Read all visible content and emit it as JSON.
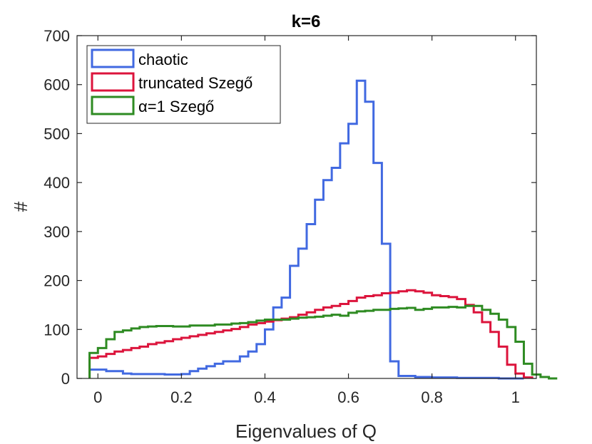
{
  "chart_data": {
    "type": "histogram",
    "title": "k=6",
    "xlabel": "Eigenvalues of Q",
    "ylabel": "#",
    "xlim": [
      -0.05,
      1.05
    ],
    "ylim": [
      0,
      700
    ],
    "xticks": [
      0,
      0.2,
      0.4,
      0.6,
      0.8,
      1
    ],
    "xtick_labels": [
      "0",
      "0.2",
      "0.4",
      "0.6",
      "0.8",
      "1"
    ],
    "yticks": [
      0,
      100,
      200,
      300,
      400,
      500,
      600,
      700
    ],
    "ytick_labels": [
      "0",
      "100",
      "200",
      "300",
      "400",
      "500",
      "600",
      "700"
    ],
    "legend_position": "top-left",
    "bin_start": -0.02,
    "bin_width": 0.02,
    "series": [
      {
        "name": "chaotic",
        "color": "#4169e1",
        "values": [
          18,
          18,
          15,
          15,
          10,
          9,
          9,
          9,
          9,
          8,
          8,
          9,
          15,
          20,
          25,
          30,
          35,
          35,
          45,
          55,
          70,
          100,
          145,
          165,
          230,
          265,
          315,
          365,
          405,
          430,
          480,
          520,
          608,
          565,
          440,
          275,
          35,
          5,
          5,
          3,
          3,
          2,
          2,
          2,
          1,
          1,
          1,
          1,
          1,
          0,
          0,
          0
        ]
      },
      {
        "name": "truncated Szegő",
        "color": "#dc143c",
        "values": [
          42,
          45,
          50,
          55,
          58,
          62,
          65,
          70,
          73,
          76,
          80,
          83,
          86,
          89,
          92,
          95,
          98,
          101,
          105,
          110,
          113,
          116,
          119,
          122,
          125,
          130,
          135,
          140,
          145,
          148,
          152,
          158,
          165,
          168,
          170,
          174,
          175,
          178,
          180,
          178,
          175,
          170,
          168,
          166,
          162,
          150,
          135,
          115,
          95,
          65,
          28,
          10,
          2
        ]
      },
      {
        "name": "α=1 Szegő",
        "color": "#2e8b22",
        "values": [
          52,
          62,
          80,
          95,
          98,
          102,
          105,
          106,
          107,
          107,
          106,
          106,
          108,
          108,
          108,
          110,
          110,
          112,
          113,
          115,
          118,
          120,
          120,
          120,
          122,
          124,
          125,
          126,
          128,
          130,
          128,
          134,
          137,
          138,
          140,
          140,
          142,
          143,
          144,
          140,
          142,
          145,
          145,
          146,
          145,
          148,
          148,
          140,
          132,
          120,
          105,
          75,
          30,
          8,
          3,
          0
        ]
      }
    ]
  }
}
